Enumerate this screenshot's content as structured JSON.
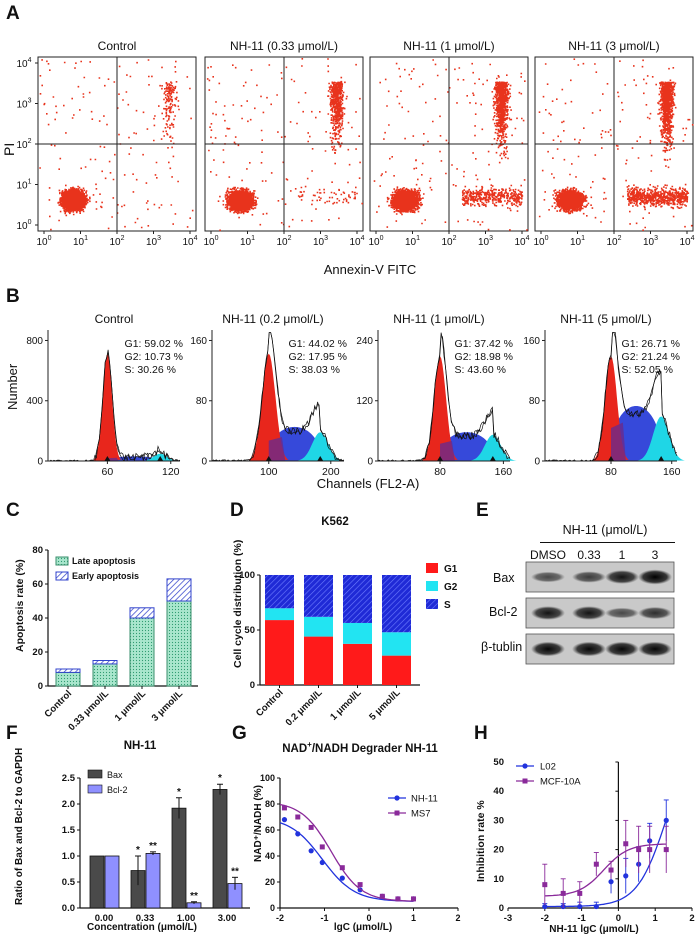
{
  "panels": {
    "A": {
      "letter": "A",
      "ylabel": "PI",
      "xlabel": "Annexin-V FITC",
      "titles": [
        "Control",
        "NH-11 (0.33 μmol/L)",
        "NH-11 (1 μmol/L)",
        "NH-11 (3 μmol/L)"
      ],
      "ticks_base": "10",
      "ticks_exp": [
        "0",
        "1",
        "2",
        "3",
        "4"
      ]
    },
    "B": {
      "letter": "B",
      "ylabel": "Number",
      "xlabel": "Channels (FL2-A)",
      "titles": [
        "Control",
        "NH-11 (0.2 μmol/L)",
        "NH-11 (1 μmol/L)",
        "NH-11 (5 μmol/L)"
      ],
      "stats": [
        [
          "G1: 59.02 %",
          "G2: 10.73 %",
          "S:  30.26 %"
        ],
        [
          "G1: 44.02 %",
          "G2: 17.95 %",
          "S:  38.03 %"
        ],
        [
          "G1: 37.42 %",
          "G2: 18.98 %",
          "S:  43.60 %"
        ],
        [
          "G1: 26.71 %",
          "G2: 21.24 %",
          "S:  52.05 %"
        ]
      ],
      "yticks": [
        [
          "0",
          "400",
          "800"
        ],
        [
          "0",
          "80",
          "160"
        ],
        [
          "0",
          "120",
          "240"
        ],
        [
          "0",
          "80",
          "160"
        ]
      ],
      "xticks": [
        [
          "60",
          "120"
        ],
        [
          "100",
          "200"
        ],
        [
          "80",
          "160"
        ],
        [
          "80",
          "160"
        ]
      ]
    },
    "C": {
      "letter": "C",
      "ylabel": "Apoptosis rate (%)",
      "legend": [
        "Late apoptosis",
        "Early apoptosis"
      ],
      "yticks": [
        "0",
        "20",
        "40",
        "60",
        "80"
      ],
      "categories": [
        "Control",
        "0.33 μmol/L",
        "1 μmol/L",
        "3 μmol/L"
      ]
    },
    "D": {
      "letter": "D",
      "title": "K562",
      "ylabel": "Cell cycle distribution (%)",
      "legend": [
        "G1",
        "G2",
        "S"
      ],
      "yticks": [
        "0",
        "50",
        "100"
      ],
      "categories": [
        "Control",
        "0.2 μmol/L",
        "1 μmol/L",
        "5 μmol/L"
      ]
    },
    "E": {
      "letter": "E",
      "header": "NH-11 (μmol/L)",
      "lanes": [
        "DMSO",
        "0.33",
        "1",
        "3"
      ],
      "bands": [
        "Bax",
        "Bcl-2",
        "β-tublin"
      ]
    },
    "F": {
      "letter": "F",
      "title": "NH-11",
      "ylabel": "Ratio of Bax and Bcl-2 to GAPDH",
      "xlabel": "Concentration (μmol/L)",
      "legend": [
        "Bax",
        "Bcl-2"
      ],
      "yticks": [
        "0.0",
        "0.5",
        "1.0",
        "1.5",
        "2.0",
        "2.5"
      ],
      "categories": [
        "0.00",
        "0.33",
        "1.00",
        "3.00"
      ],
      "sig": [
        [
          "",
          ""
        ],
        [
          "*",
          "**"
        ],
        [
          "*",
          "**"
        ],
        [
          "*",
          "**"
        ]
      ]
    },
    "G": {
      "letter": "G",
      "title_pre": "NAD",
      "title_sup": "+",
      "title_post": "/NADH Degrader NH-11",
      "ylabel": "NAD⁺/NADH (%)",
      "xlabel": "lgC (μmol/L)",
      "legend": [
        "NH-11",
        "MS7"
      ],
      "yticks": [
        "0",
        "20",
        "40",
        "60",
        "80",
        "100"
      ],
      "xticks": [
        "-2",
        "-1",
        "0",
        "1",
        "2"
      ]
    },
    "H": {
      "letter": "H",
      "ylabel": "Inhibition rate %",
      "xlabel": "NH-11  lgC (μmol/L)",
      "legend": [
        "L02",
        "MCF-10A"
      ],
      "yticks": [
        "0",
        "10",
        "20",
        "30",
        "40",
        "50"
      ],
      "xticks": [
        "-3",
        "-2",
        "-1",
        "0",
        "1",
        "2"
      ]
    }
  },
  "chart_data": [
    {
      "type": "bar",
      "panel": "C",
      "ylabel": "Apoptosis rate (%)",
      "ylim": [
        0,
        80
      ],
      "categories": [
        "Control",
        "0.33 μmol/L",
        "1 μmol/L",
        "3 μmol/L"
      ],
      "series": [
        {
          "name": "Late apoptosis",
          "values": [
            8,
            13,
            40,
            50
          ]
        },
        {
          "name": "Early apoptosis",
          "values": [
            2,
            2,
            6,
            13
          ]
        }
      ],
      "stacked": true
    },
    {
      "type": "bar",
      "panel": "D",
      "title": "K562",
      "ylabel": "Cell cycle distribution (%)",
      "ylim": [
        0,
        100
      ],
      "categories": [
        "Control",
        "0.2 μmol/L",
        "1 μmol/L",
        "5 μmol/L"
      ],
      "series": [
        {
          "name": "G1",
          "values": [
            59.02,
            44.02,
            37.42,
            26.71
          ]
        },
        {
          "name": "G2",
          "values": [
            10.73,
            17.95,
            18.98,
            21.24
          ]
        },
        {
          "name": "S",
          "values": [
            30.26,
            38.03,
            43.6,
            52.05
          ]
        }
      ],
      "stacked": true
    },
    {
      "type": "bar",
      "panel": "F",
      "title": "NH-11",
      "ylabel": "Ratio of Bax and Bcl-2 to GAPDH",
      "xlabel": "Concentration (μmol/L)",
      "ylim": [
        0,
        2.5
      ],
      "categories": [
        "0.00",
        "0.33",
        "1.00",
        "3.00"
      ],
      "series": [
        {
          "name": "Bax",
          "values": [
            1.0,
            0.72,
            1.92,
            2.28
          ],
          "errors": [
            0,
            0.28,
            0.2,
            0.1
          ]
        },
        {
          "name": "Bcl-2",
          "values": [
            1.0,
            1.05,
            0.1,
            0.47
          ],
          "errors": [
            0,
            0.03,
            0.02,
            0.12
          ]
        }
      ]
    },
    {
      "type": "scatter",
      "panel": "G",
      "ylabel": "NAD⁺/NADH (%)",
      "xlabel": "lgC (μmol/L)",
      "xlim": [
        -2,
        2
      ],
      "ylim": [
        0,
        100
      ],
      "series": [
        {
          "name": "NH-11",
          "x": [
            -1.9,
            -1.6,
            -1.3,
            -1.05,
            -0.6,
            -0.2,
            0.3,
            0.65,
            1.0
          ],
          "y": [
            68,
            57,
            44,
            35,
            23,
            14,
            9,
            7,
            7
          ]
        },
        {
          "name": "MS7",
          "x": [
            -1.9,
            -1.6,
            -1.3,
            -1.05,
            -0.6,
            -0.2,
            0.3,
            0.65,
            1.0
          ],
          "y": [
            77,
            70,
            62,
            47,
            31,
            18,
            9,
            7,
            7
          ]
        }
      ]
    },
    {
      "type": "scatter",
      "panel": "H",
      "ylabel": "Inhibition rate %",
      "xlabel": "NH-11  lgC (μmol/L)",
      "xlim": [
        -3,
        2
      ],
      "ylim": [
        0,
        50
      ],
      "series": [
        {
          "name": "L02",
          "x": [
            -2.0,
            -1.5,
            -1.05,
            -0.6,
            -0.2,
            0.2,
            0.55,
            0.85,
            1.3
          ],
          "y": [
            0.5,
            0.5,
            0.5,
            0.5,
            9,
            11,
            15,
            23,
            30
          ],
          "errors": [
            1,
            1,
            1.5,
            1.5,
            4,
            6,
            6,
            6,
            7
          ]
        },
        {
          "name": "MCF-10A",
          "x": [
            -2.0,
            -1.5,
            -1.05,
            -0.6,
            -0.2,
            0.2,
            0.55,
            0.85,
            1.3
          ],
          "y": [
            8,
            5,
            5,
            15,
            13,
            22,
            20,
            20,
            20
          ],
          "errors": [
            7,
            5,
            4,
            4,
            3,
            8,
            8,
            8,
            8
          ]
        }
      ]
    }
  ]
}
